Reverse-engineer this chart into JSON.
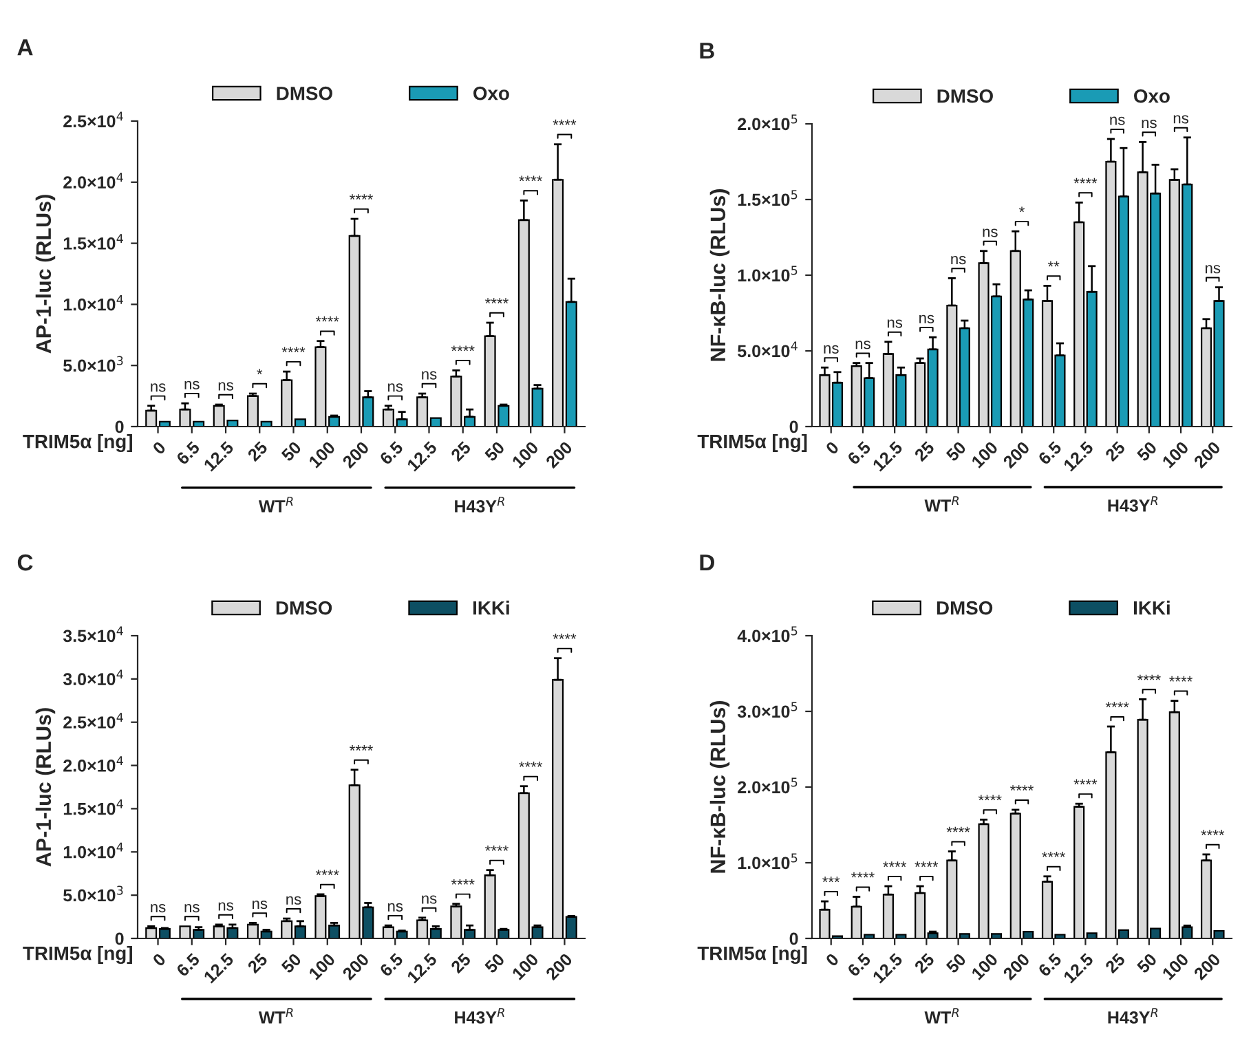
{
  "chart_data": [
    {
      "type": "bar",
      "title": "A",
      "xlabel": "TRIM5α [ng]",
      "ylabel": "AP-1-luc (RLUs)",
      "legend": "top",
      "grid": false,
      "categories": [
        "0",
        "6.5",
        "12.5",
        "25",
        "50",
        "100",
        "200",
        "6.5",
        "12.5",
        "25",
        "50",
        "100",
        "200"
      ],
      "ylim": [
        0,
        25000
      ],
      "yticks": [
        0,
        {
          "value": 5000,
          "label": "5.0×10$^{3}$"
        },
        {
          "value": 10000,
          "label": "1.0×10$^{4}$"
        },
        {
          "value": 15000,
          "label": "1.5×10$^{4}$"
        },
        {
          "value": 20000,
          "label": "2.0×10$^{4}$"
        },
        {
          "value": 25000,
          "label": "2.5×10$^{4}$"
        }
      ],
      "series": [
        {
          "name": "DMSO",
          "color": "#d9d9d9",
          "values": [
            1300,
            1400,
            1700,
            2500,
            3800,
            6500,
            15600,
            1400,
            2400,
            4100,
            7400,
            16900,
            20200
          ],
          "errors": [
            [
              1300,
              1700
            ],
            [
              1400,
              1900
            ],
            [
              1700,
              1800
            ],
            [
              2500,
              2700
            ],
            [
              3800,
              4500
            ],
            [
              6500,
              7000
            ],
            [
              15600,
              17000
            ],
            [
              1400,
              1700
            ],
            [
              2400,
              2700
            ],
            [
              4100,
              4600
            ],
            [
              7400,
              8500
            ],
            [
              16900,
              18500
            ],
            [
              20200,
              23100
            ]
          ]
        },
        {
          "name": "Oxo",
          "color": "#1a9bb5",
          "values": [
            400,
            400,
            500,
            400,
            600,
            800,
            2400,
            600,
            700,
            800,
            1700,
            3100,
            10200
          ],
          "errors": [
            null,
            null,
            null,
            null,
            null,
            [
              800,
              900
            ],
            [
              2400,
              2900
            ],
            [
              600,
              1200
            ],
            null,
            [
              800,
              1400
            ],
            [
              1700,
              1800
            ],
            [
              3100,
              3400
            ],
            [
              10200,
              12100
            ]
          ]
        }
      ],
      "annotations": [
        "ns",
        "ns",
        "ns",
        "*",
        "****",
        "****",
        "****",
        "ns",
        "ns",
        "****",
        "****",
        "****",
        "****",
        "WT$^{R}$",
        "H43Y$^{R}$"
      ]
    },
    {
      "type": "bar",
      "title": "B",
      "xlabel": "TRIM5α [ng]",
      "ylabel": "NF-κB-luc (RLUs)",
      "legend": "top",
      "grid": false,
      "categories": [
        "0",
        "6.5",
        "12.5",
        "25",
        "50",
        "100",
        "200",
        "6.5",
        "12.5",
        "25",
        "50",
        "100",
        "200"
      ],
      "ylim": [
        0,
        200000
      ],
      "yticks": [
        0,
        {
          "value": 50000,
          "label": "5.0×10$^{4}$"
        },
        {
          "value": 100000,
          "label": "1.0×10$^{5}$"
        },
        {
          "value": 150000,
          "label": "1.5×10$^{5}$"
        },
        {
          "value": 200000,
          "label": "2.0×10$^{5}$"
        }
      ],
      "series": [
        {
          "name": "DMSO",
          "color": "#d9d9d9",
          "values": [
            34000,
            40000,
            48000,
            42000,
            80000,
            108000,
            116000,
            83000,
            135000,
            175000,
            168000,
            163000,
            65000
          ],
          "errors": [
            [
              34000,
              39000
            ],
            [
              40000,
              42000
            ],
            [
              48000,
              56000
            ],
            [
              42000,
              45000
            ],
            [
              80000,
              98000
            ],
            [
              108000,
              116000
            ],
            [
              116000,
              129000
            ],
            [
              83000,
              93000
            ],
            [
              135000,
              148000
            ],
            [
              175000,
              190000
            ],
            [
              168000,
              188000
            ],
            [
              163000,
              170000
            ],
            [
              65000,
              71000
            ]
          ]
        },
        {
          "name": "Oxo",
          "color": "#1a9bb5",
          "values": [
            29000,
            32000,
            34000,
            51000,
            65000,
            86000,
            84000,
            47000,
            89000,
            152000,
            154000,
            160000,
            83000
          ],
          "errors": [
            [
              29000,
              36000
            ],
            [
              32000,
              42000
            ],
            [
              34000,
              39000
            ],
            [
              51000,
              59000
            ],
            [
              65000,
              70000
            ],
            [
              86000,
              94000
            ],
            [
              84000,
              90000
            ],
            [
              47000,
              55000
            ],
            [
              89000,
              106000
            ],
            [
              152000,
              184000
            ],
            [
              154000,
              173000
            ],
            [
              160000,
              191000
            ],
            [
              83000,
              92000
            ]
          ]
        }
      ],
      "annotations": [
        "ns",
        "ns",
        "ns",
        "ns",
        "ns",
        "ns",
        "*",
        "**",
        "****",
        "ns",
        "ns",
        "ns",
        "ns",
        "WT$^{R}$",
        "H43Y$^{R}$"
      ]
    },
    {
      "type": "bar",
      "title": "C",
      "xlabel": "TRIM5α [ng]",
      "ylabel": "AP-1-luc (RLUs)",
      "legend": "top",
      "grid": false,
      "categories": [
        "0",
        "6.5",
        "12.5",
        "25",
        "50",
        "100",
        "200",
        "6.5",
        "12.5",
        "25",
        "50",
        "100",
        "200"
      ],
      "ylim": [
        0,
        35000
      ],
      "yticks": [
        0,
        {
          "value": 5000,
          "label": "5.0×10$^{3}$"
        },
        {
          "value": 10000,
          "label": "1.0×10$^{4}$"
        },
        {
          "value": 15000,
          "label": "1.5×10$^{4}$"
        },
        {
          "value": 20000,
          "label": "2.0×10$^{4}$"
        },
        {
          "value": 25000,
          "label": "2.5×10$^{4}$"
        },
        {
          "value": 30000,
          "label": "3.0×10$^{4}$"
        },
        {
          "value": 35000,
          "label": "3.5×10$^{4}$"
        }
      ],
      "series": [
        {
          "name": "DMSO",
          "color": "#d9d9d9",
          "values": [
            1200,
            1400,
            1400,
            1600,
            2000,
            4900,
            17700,
            1300,
            2100,
            3700,
            7300,
            16800,
            29900
          ],
          "errors": [
            [
              1200,
              1400
            ],
            null,
            [
              1400,
              1600
            ],
            [
              1600,
              1800
            ],
            [
              2000,
              2300
            ],
            [
              4900,
              5100
            ],
            [
              17700,
              19500
            ],
            [
              1300,
              1500
            ],
            [
              2100,
              2400
            ],
            [
              3700,
              4000
            ],
            [
              7300,
              7900
            ],
            [
              16800,
              17600
            ],
            [
              29900,
              32400
            ]
          ]
        },
        {
          "name": "IKKi",
          "color": "#0d4f63",
          "values": [
            1100,
            1000,
            1200,
            800,
            1400,
            1500,
            3600,
            800,
            1100,
            1000,
            1000,
            1300,
            2500
          ],
          "errors": [
            [
              1100,
              1200
            ],
            [
              1000,
              1300
            ],
            [
              1200,
              1600
            ],
            [
              800,
              1000
            ],
            [
              1400,
              2000
            ],
            [
              1500,
              1800
            ],
            [
              3600,
              4100
            ],
            [
              800,
              900
            ],
            [
              1100,
              1400
            ],
            [
              1000,
              1500
            ],
            [
              1000,
              1100
            ],
            [
              1300,
              1500
            ],
            [
              2500,
              2600
            ]
          ]
        }
      ],
      "annotations": [
        "ns",
        "ns",
        "ns",
        "ns",
        "ns",
        "****",
        "****",
        "ns",
        "ns",
        "****",
        "****",
        "****",
        "****",
        "WT$^{R}$",
        "H43Y$^{R}$"
      ]
    },
    {
      "type": "bar",
      "title": "D",
      "xlabel": "TRIM5α [ng]",
      "ylabel": "NF-κB-luc (RLUs)",
      "legend": "top",
      "grid": false,
      "categories": [
        "0",
        "6.5",
        "12.5",
        "25",
        "50",
        "100",
        "200",
        "6.5",
        "12.5",
        "25",
        "50",
        "100",
        "200"
      ],
      "ylim": [
        0,
        400000
      ],
      "yticks": [
        0,
        {
          "value": 100000,
          "label": "1.0×10$^{5}$"
        },
        {
          "value": 200000,
          "label": "2.0×10$^{5}$"
        },
        {
          "value": 300000,
          "label": "3.0×10$^{5}$"
        },
        {
          "value": 400000,
          "label": "4.0×10$^{5}$"
        }
      ],
      "series": [
        {
          "name": "DMSO",
          "color": "#d9d9d9",
          "values": [
            38000,
            42000,
            58000,
            60000,
            103000,
            151000,
            165000,
            75000,
            174000,
            246000,
            289000,
            299000,
            103000
          ],
          "errors": [
            [
              38000,
              49000
            ],
            [
              42000,
              55000
            ],
            [
              58000,
              69000
            ],
            [
              60000,
              69000
            ],
            [
              103000,
              115000
            ],
            [
              151000,
              157000
            ],
            [
              165000,
              170000
            ],
            [
              75000,
              82000
            ],
            [
              174000,
              178000
            ],
            [
              246000,
              280000
            ],
            [
              289000,
              316000
            ],
            [
              299000,
              314000
            ],
            [
              103000,
              111000
            ]
          ]
        },
        {
          "name": "IKKi",
          "color": "#0d4f63",
          "values": [
            3000,
            5000,
            5000,
            7000,
            6000,
            6000,
            9000,
            5000,
            7000,
            11000,
            13000,
            15000,
            10000
          ],
          "errors": [
            null,
            null,
            null,
            [
              7000,
              9000
            ],
            null,
            null,
            null,
            null,
            null,
            null,
            null,
            [
              15000,
              17000
            ],
            null
          ]
        }
      ],
      "annotations": [
        "***",
        "****",
        "****",
        "****",
        "****",
        "****",
        "****",
        "****",
        "****",
        "****",
        "****",
        "****",
        "****",
        "WT$^{R}$",
        "H43Y$^{R}$"
      ]
    }
  ]
}
